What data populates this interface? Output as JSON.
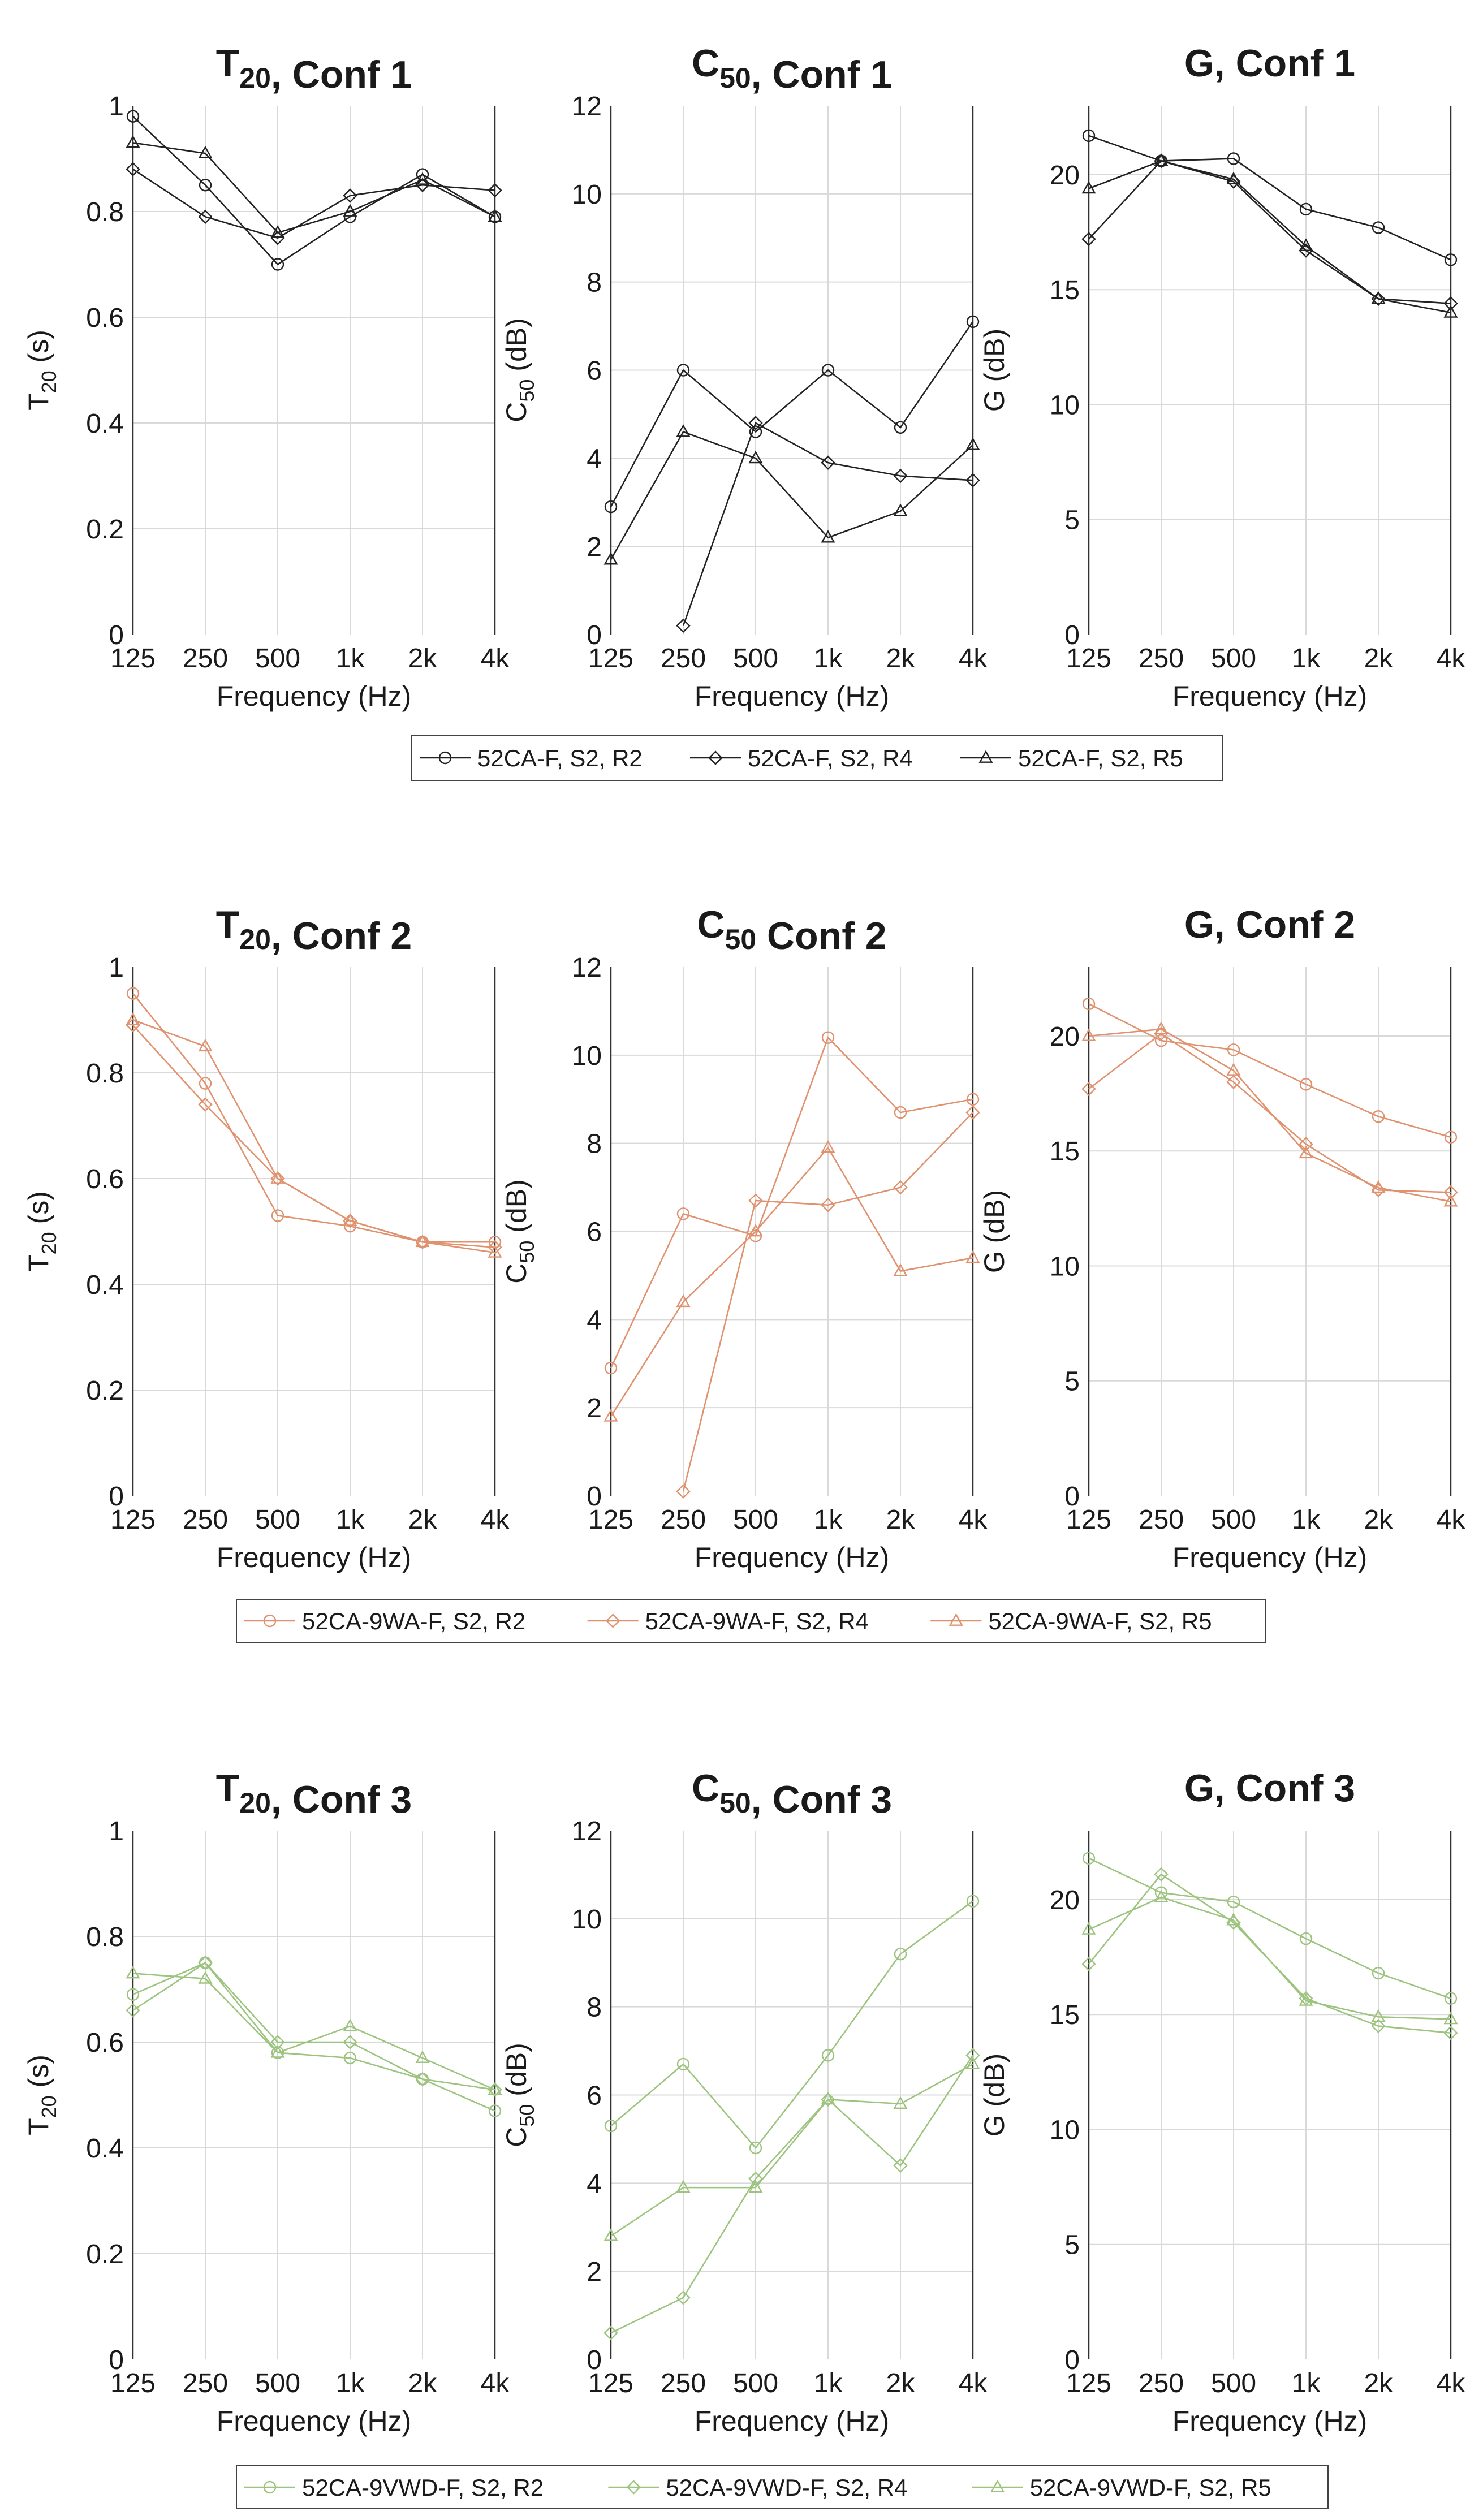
{
  "x_categories": [
    "125",
    "250",
    "500",
    "1k",
    "2k",
    "4k"
  ],
  "xlabel": "Frequency (Hz)",
  "chart_data": [
    {
      "type": "line",
      "row": 0,
      "col": 0,
      "metric": "T20",
      "conf_label": ", Conf 1",
      "ylabel": "(s)",
      "ylim": [
        0,
        1
      ],
      "yticks": [
        "0",
        "0.2",
        "0.4",
        "0.6",
        "0.8",
        "1"
      ],
      "series": [
        {
          "name": "52CA-F, S2, R2",
          "marker": "circle",
          "values": [
            0.98,
            0.85,
            0.7,
            0.79,
            0.87,
            0.79
          ]
        },
        {
          "name": "52CA-F, S2, R4",
          "marker": "diamond",
          "values": [
            0.88,
            0.79,
            0.75,
            0.83,
            0.85,
            0.84
          ]
        },
        {
          "name": "52CA-F, S2, R5",
          "marker": "triangle",
          "values": [
            0.93,
            0.91,
            0.76,
            0.8,
            0.86,
            0.79
          ]
        }
      ]
    },
    {
      "type": "line",
      "row": 0,
      "col": 1,
      "metric": "C50",
      "conf_label": ", Conf 1",
      "ylabel": "(dB)",
      "ylim": [
        0,
        12
      ],
      "yticks": [
        "0",
        "2",
        "4",
        "6",
        "8",
        "10",
        "12"
      ],
      "series": [
        {
          "name": "52CA-F, S2, R2",
          "marker": "circle",
          "values": [
            2.9,
            6.0,
            4.6,
            6.0,
            4.7,
            7.1
          ]
        },
        {
          "name": "52CA-F, S2, R4",
          "marker": "diamond",
          "values": [
            null,
            0.2,
            4.8,
            3.9,
            3.6,
            3.5
          ]
        },
        {
          "name": "52CA-F, S2, R5",
          "marker": "triangle",
          "values": [
            1.7,
            4.6,
            4.0,
            2.2,
            2.8,
            4.3
          ]
        }
      ]
    },
    {
      "type": "line",
      "row": 0,
      "col": 2,
      "metric": "G",
      "conf_label": ", Conf 1",
      "ylabel": "(dB)",
      "ylim": [
        0,
        23
      ],
      "yticks": [
        "0",
        "5",
        "10",
        "15",
        "20"
      ],
      "series": [
        {
          "name": "52CA-F, S2, R2",
          "marker": "circle",
          "values": [
            21.7,
            20.6,
            20.7,
            18.5,
            17.7,
            16.3
          ]
        },
        {
          "name": "52CA-F, S2, R4",
          "marker": "diamond",
          "values": [
            17.2,
            20.6,
            19.7,
            16.7,
            14.6,
            14.4
          ]
        },
        {
          "name": "52CA-F, S2, R5",
          "marker": "triangle",
          "values": [
            19.4,
            20.6,
            19.8,
            16.9,
            14.6,
            14.0
          ]
        }
      ]
    },
    {
      "type": "line",
      "row": 1,
      "col": 0,
      "metric": "T20",
      "conf_label": ", Conf 2",
      "ylabel": "(s)",
      "ylim": [
        0,
        1
      ],
      "yticks": [
        "0",
        "0.2",
        "0.4",
        "0.6",
        "0.8",
        "1"
      ],
      "series": [
        {
          "name": "52CA-9WA-F, S2, R2",
          "marker": "circle",
          "values": [
            0.95,
            0.78,
            0.53,
            0.51,
            0.48,
            0.48
          ]
        },
        {
          "name": "52CA-9WA-F, S2, R4",
          "marker": "diamond",
          "values": [
            0.89,
            0.74,
            0.6,
            0.52,
            0.48,
            0.47
          ]
        },
        {
          "name": "52CA-9WA-F, S2, R5",
          "marker": "triangle",
          "values": [
            0.9,
            0.85,
            0.6,
            0.52,
            0.48,
            0.46
          ]
        }
      ]
    },
    {
      "type": "line",
      "row": 1,
      "col": 1,
      "metric": "C50",
      "conf_label": " Conf 2",
      "ylabel": "(dB)",
      "ylim": [
        0,
        12
      ],
      "yticks": [
        "0",
        "2",
        "4",
        "6",
        "8",
        "10",
        "12"
      ],
      "series": [
        {
          "name": "52CA-9WA-F, S2, R2",
          "marker": "circle",
          "values": [
            2.9,
            6.4,
            5.9,
            10.4,
            8.7,
            9.0
          ]
        },
        {
          "name": "52CA-9WA-F, S2, R4",
          "marker": "diamond",
          "values": [
            null,
            0.1,
            6.7,
            6.6,
            7.0,
            8.7
          ]
        },
        {
          "name": "52CA-9WA-F, S2, R5",
          "marker": "triangle",
          "values": [
            1.8,
            4.4,
            6.0,
            7.9,
            5.1,
            5.4
          ]
        }
      ]
    },
    {
      "type": "line",
      "row": 1,
      "col": 2,
      "metric": "G",
      "conf_label": ", Conf 2",
      "ylabel": "(dB)",
      "ylim": [
        0,
        23
      ],
      "yticks": [
        "0",
        "5",
        "10",
        "15",
        "20"
      ],
      "series": [
        {
          "name": "52CA-9WA-F, S2, R2",
          "marker": "circle",
          "values": [
            21.4,
            19.8,
            19.4,
            17.9,
            16.5,
            15.6
          ]
        },
        {
          "name": "52CA-9WA-F, S2, R4",
          "marker": "diamond",
          "values": [
            17.7,
            20.1,
            18.0,
            15.3,
            13.3,
            13.2
          ]
        },
        {
          "name": "52CA-9WA-F, S2, R5",
          "marker": "triangle",
          "values": [
            20.0,
            20.3,
            18.5,
            14.9,
            13.4,
            12.8
          ]
        }
      ]
    },
    {
      "type": "line",
      "row": 2,
      "col": 0,
      "metric": "T20",
      "conf_label": ", Conf 3",
      "ylabel": "(s)",
      "ylim": [
        0,
        1
      ],
      "yticks": [
        "0",
        "0.2",
        "0.4",
        "0.6",
        "0.8",
        "1"
      ],
      "series": [
        {
          "name": "52CA-9VWD-F, S2, R2",
          "marker": "circle",
          "values": [
            0.69,
            0.75,
            0.58,
            0.57,
            0.53,
            0.47
          ]
        },
        {
          "name": "52CA-9VWD-F, S2, R4",
          "marker": "diamond",
          "values": [
            0.66,
            0.75,
            0.6,
            0.6,
            0.53,
            0.51
          ]
        },
        {
          "name": "52CA-9VWD-F, S2, R5",
          "marker": "triangle",
          "values": [
            0.73,
            0.72,
            0.58,
            0.63,
            0.57,
            0.51
          ]
        }
      ]
    },
    {
      "type": "line",
      "row": 2,
      "col": 1,
      "metric": "C50",
      "conf_label": ", Conf 3",
      "ylabel": "(dB)",
      "ylim": [
        0,
        12
      ],
      "yticks": [
        "0",
        "2",
        "4",
        "6",
        "8",
        "10",
        "12"
      ],
      "series": [
        {
          "name": "52CA-9VWD-F, S2, R2",
          "marker": "circle",
          "values": [
            5.3,
            6.7,
            4.8,
            6.9,
            9.2,
            10.4
          ]
        },
        {
          "name": "52CA-9VWD-F, S2, R4",
          "marker": "diamond",
          "values": [
            0.6,
            1.4,
            4.1,
            5.9,
            4.4,
            6.9
          ]
        },
        {
          "name": "52CA-9VWD-F, S2, R5",
          "marker": "triangle",
          "values": [
            2.8,
            3.9,
            3.9,
            5.9,
            5.8,
            6.7
          ]
        }
      ]
    },
    {
      "type": "line",
      "row": 2,
      "col": 2,
      "metric": "G",
      "conf_label": ", Conf 3",
      "ylabel": "(dB)",
      "ylim": [
        0,
        23
      ],
      "yticks": [
        "0",
        "5",
        "10",
        "15",
        "20"
      ],
      "series": [
        {
          "name": "52CA-9VWD-F, S2, R2",
          "marker": "circle",
          "values": [
            21.8,
            20.3,
            19.9,
            18.3,
            16.8,
            15.7
          ]
        },
        {
          "name": "52CA-9VWD-F, S2, R4",
          "marker": "diamond",
          "values": [
            17.2,
            21.1,
            19.0,
            15.7,
            14.5,
            14.2
          ]
        },
        {
          "name": "52CA-9VWD-F, S2, R5",
          "marker": "triangle",
          "values": [
            18.7,
            20.1,
            19.1,
            15.6,
            14.9,
            14.8
          ]
        }
      ]
    }
  ],
  "legends": [
    {
      "row": 0,
      "color": "#222222",
      "entries": [
        "52CA-F, S2, R2",
        "52CA-F, S2, R4",
        "52CA-F, S2, R5"
      ]
    },
    {
      "row": 1,
      "color": "#e0926e",
      "entries": [
        "52CA-9WA-F, S2, R2",
        "52CA-9WA-F, S2, R4",
        "52CA-9WA-F, S2, R5"
      ]
    },
    {
      "row": 2,
      "color": "#9dc47e",
      "entries": [
        "52CA-9VWD-F, S2, R2",
        "52CA-9VWD-F, S2, R4",
        "52CA-9VWD-F, S2, R5"
      ]
    }
  ],
  "row_colors": [
    "#222222",
    "#e0926e",
    "#9dc47e"
  ]
}
